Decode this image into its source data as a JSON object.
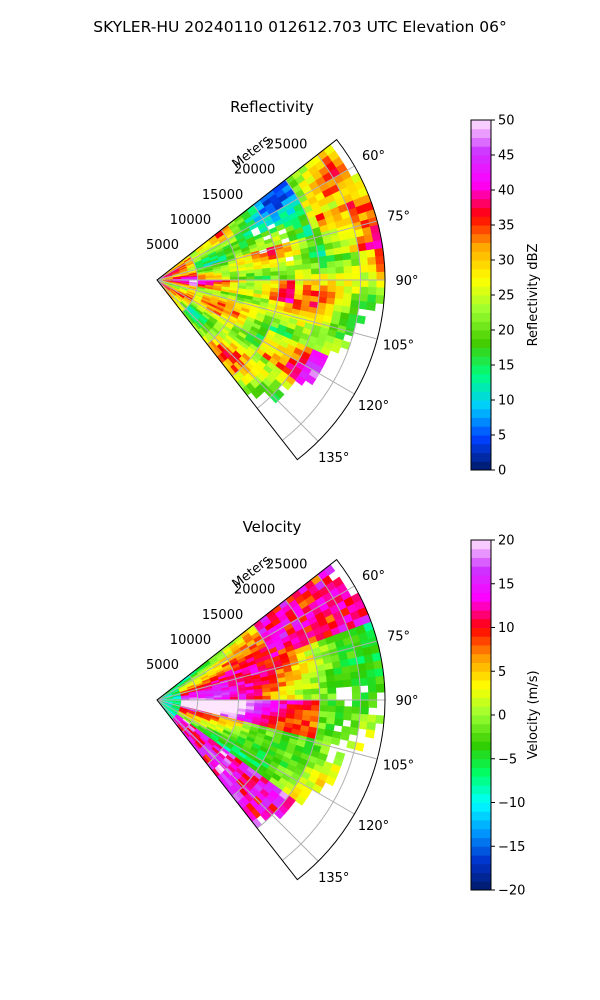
{
  "figure": {
    "suptitle": "SKYLER-HU  20240110  012612.703 UTC Elevation 06°"
  },
  "chart_data": [
    {
      "type": "heatmap",
      "title": "Reflectivity",
      "projection": "polar sector (radar PPI)",
      "radial_axis_label": "Meters",
      "range_ticks": [
        "5000",
        "10000",
        "15000",
        "20000",
        "25000"
      ],
      "range_tick_values": [
        5000,
        10000,
        15000,
        20000,
        25000
      ],
      "azimuth_ticks": [
        "60°",
        "75°",
        "90°",
        "105°",
        "120°",
        "135°"
      ],
      "azimuth_tick_values": [
        60,
        75,
        90,
        105,
        120,
        135
      ],
      "azimuth_range": [
        52,
        142
      ],
      "range_max": 28000,
      "grid": true,
      "colorbar": {
        "label": "Reflectivity dBZ",
        "ticks": [
          "0",
          "5",
          "10",
          "15",
          "20",
          "25",
          "30",
          "35",
          "40",
          "45",
          "50"
        ],
        "range": [
          0,
          50
        ],
        "colormap": [
          "#001a66",
          "#0040ff",
          "#00ccff",
          "#00ff80",
          "#44cc00",
          "#99ff33",
          "#ffff00",
          "#ffaa00",
          "#ff0000",
          "#ff00ff",
          "#cc33ff",
          "#ffe6ff"
        ]
      }
    },
    {
      "type": "heatmap",
      "title": "Velocity",
      "projection": "polar sector (radar PPI)",
      "radial_axis_label": "Meters",
      "range_ticks": [
        "5000",
        "10000",
        "15000",
        "20000",
        "25000"
      ],
      "range_tick_values": [
        5000,
        10000,
        15000,
        20000,
        25000
      ],
      "azimuth_ticks": [
        "60°",
        "75°",
        "90°",
        "105°",
        "120°",
        "135°"
      ],
      "azimuth_tick_values": [
        60,
        75,
        90,
        105,
        120,
        135
      ],
      "azimuth_range": [
        52,
        142
      ],
      "range_max": 28000,
      "grid": true,
      "colorbar": {
        "label": "Velocity (m/s)",
        "ticks": [
          "−20",
          "−15",
          "−10",
          "−5",
          "0",
          "5",
          "10",
          "15",
          "20"
        ],
        "range": [
          -20,
          20
        ],
        "colormap": [
          "#001a66",
          "#0033cc",
          "#0099ff",
          "#00ffff",
          "#00ff66",
          "#33cc00",
          "#99ff33",
          "#ffff00",
          "#ff9900",
          "#ff0000",
          "#ff00ff",
          "#cc33ff",
          "#ffe6ff"
        ]
      }
    }
  ]
}
